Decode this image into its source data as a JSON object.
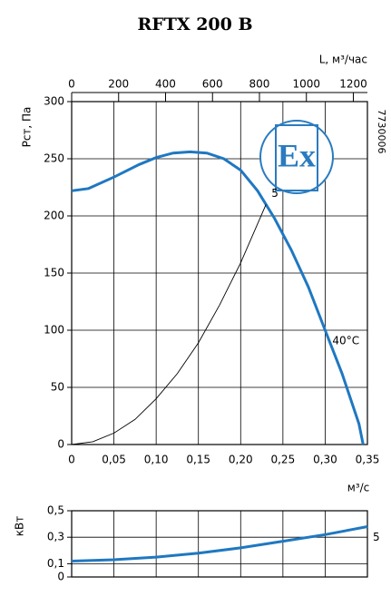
{
  "chart_data": [
    {
      "type": "line",
      "title": "RFTX 200 B",
      "x_label": "м³/с",
      "y_label": "Рст, Па",
      "x2_label": "L, м³/час",
      "badge": "Ex",
      "code": "7730006",
      "annotation": "40°C",
      "xlim": [
        0,
        0.35
      ],
      "ylim": [
        0,
        300
      ],
      "x2lim": [
        0,
        1260
      ],
      "xticks": [
        0,
        {
          "value": 0.05,
          "label": "0,05"
        },
        {
          "value": 0.1,
          "label": "0,10"
        },
        {
          "value": 0.15,
          "label": "0,15"
        },
        {
          "value": 0.2,
          "label": "0,20"
        },
        {
          "value": 0.25,
          "label": "0,25"
        },
        {
          "value": 0.3,
          "label": "0,30"
        },
        {
          "value": 0.35,
          "label": "0,35"
        }
      ],
      "yticks": [
        0,
        50,
        100,
        150,
        200,
        250,
        300
      ],
      "x2ticks": [
        0,
        200,
        400,
        600,
        800,
        1000,
        1200
      ],
      "grid": true,
      "series": [
        {
          "color": "#1f78c1",
          "x": [
            0,
            0.02,
            0.05,
            0.08,
            0.1,
            0.12,
            0.14,
            0.16,
            0.18,
            0.2,
            0.22,
            0.24,
            0.26,
            0.28,
            0.3,
            0.32,
            0.34,
            0.345
          ],
          "values": [
            222,
            224,
            234,
            245,
            251,
            255,
            256,
            255,
            250,
            240,
            222,
            198,
            170,
            138,
            100,
            62,
            18,
            0
          ]
        },
        {
          "name": "5",
          "color": "#000000",
          "x": [
            0,
            0.025,
            0.05,
            0.075,
            0.1,
            0.125,
            0.15,
            0.175,
            0.2,
            0.23
          ],
          "values": [
            0,
            2.5,
            10,
            22,
            40,
            62,
            89,
            122,
            159,
            210
          ]
        }
      ]
    },
    {
      "type": "line",
      "y_label": "кВт",
      "xlim": [
        0,
        0.35
      ],
      "ylim": [
        0,
        0.5
      ],
      "yticks": [
        0,
        {
          "value": 0.1,
          "label": "0,1"
        },
        {
          "value": 0.3,
          "label": "0,3"
        },
        {
          "value": 0.5,
          "label": "0,5"
        }
      ],
      "grid": true,
      "series": [
        {
          "name": "5",
          "color": "#1f78c1",
          "x": [
            0,
            0.05,
            0.1,
            0.15,
            0.2,
            0.25,
            0.3,
            0.35
          ],
          "values": [
            0.12,
            0.13,
            0.15,
            0.18,
            0.22,
            0.27,
            0.32,
            0.38
          ]
        }
      ]
    }
  ]
}
